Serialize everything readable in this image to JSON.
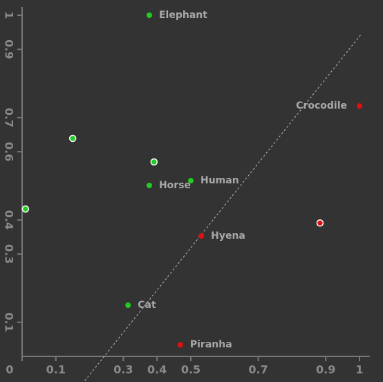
{
  "chart_data": {
    "type": "scatter",
    "xlim": [
      0,
      1
    ],
    "ylim": [
      0,
      1
    ],
    "xticks": [
      0,
      0.1,
      0.3,
      0.4,
      0.5,
      0.7,
      0.9,
      1
    ],
    "yticks": [
      0.1,
      0.3,
      0.4,
      0.6,
      0.7,
      0.9,
      1
    ],
    "points": [
      {
        "label": "Elephant",
        "x": 0.377,
        "y": 1.0,
        "color": "#22cc22",
        "outline": false
      },
      {
        "label": "Crocodile",
        "x": 1.0,
        "y": 0.734,
        "color": "#dd1111",
        "outline": false
      },
      {
        "label": null,
        "x": 0.15,
        "y": 0.639,
        "color": "#22cc22",
        "outline": true
      },
      {
        "label": null,
        "x": 0.391,
        "y": 0.57,
        "color": "#22cc22",
        "outline": true
      },
      {
        "label": "Human",
        "x": 0.5,
        "y": 0.515,
        "color": "#22cc22",
        "outline": false
      },
      {
        "label": "Horse",
        "x": 0.377,
        "y": 0.501,
        "color": "#22cc22",
        "outline": false
      },
      {
        "label": null,
        "x": 0.01,
        "y": 0.432,
        "color": "#22cc22",
        "outline": true
      },
      {
        "label": null,
        "x": 0.883,
        "y": 0.391,
        "color": "#dd1111",
        "outline": true
      },
      {
        "label": "Hyena",
        "x": 0.531,
        "y": 0.353,
        "color": "#dd1111",
        "outline": false
      },
      {
        "label": "Cat",
        "x": 0.314,
        "y": 0.15,
        "color": "#22cc22",
        "outline": false
      },
      {
        "label": "Piranha",
        "x": 0.469,
        "y": 0.034,
        "color": "#dd1111",
        "outline": false
      }
    ],
    "reference_line": {
      "x": [
        0.186,
        1.004
      ],
      "y": [
        -0.071,
        0.943
      ]
    }
  }
}
